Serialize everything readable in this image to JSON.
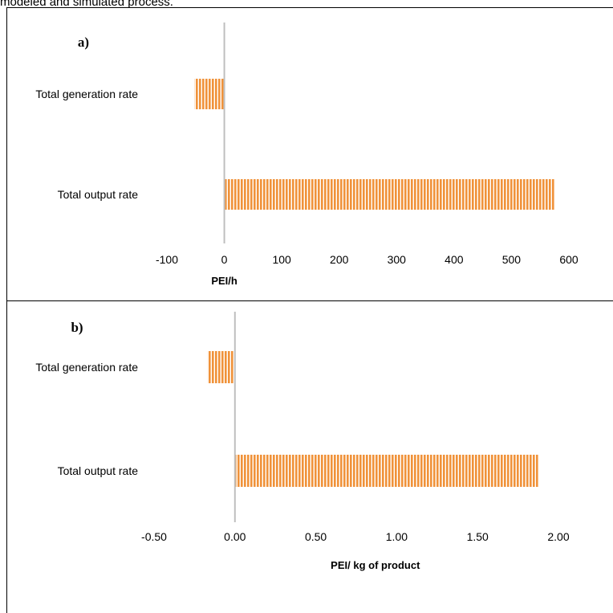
{
  "caption": "modeled and simulated process.",
  "colors": {
    "bar": "#f0923a",
    "axis": "#bfbfbf"
  },
  "chart_data": [
    {
      "type": "bar",
      "orientation": "horizontal",
      "panel_label": "a)",
      "categories": [
        "Total generation rate",
        "Total output rate"
      ],
      "values": [
        -52,
        575
      ],
      "xlabel": "PEI/h",
      "xlim": [
        -100,
        600
      ],
      "xticks": [
        "-100",
        "0",
        "100",
        "200",
        "300",
        "400",
        "500",
        "600"
      ],
      "grid": false
    },
    {
      "type": "bar",
      "orientation": "horizontal",
      "panel_label": "b)",
      "categories": [
        "Total generation rate",
        "Total output rate"
      ],
      "values": [
        -0.17,
        1.88
      ],
      "xlabel": "PEI/ kg of product",
      "xlim": [
        -0.5,
        2.0
      ],
      "xticks": [
        "-0.50",
        "0.00",
        "0.50",
        "1.00",
        "1.50",
        "2.00"
      ],
      "grid": false
    }
  ]
}
